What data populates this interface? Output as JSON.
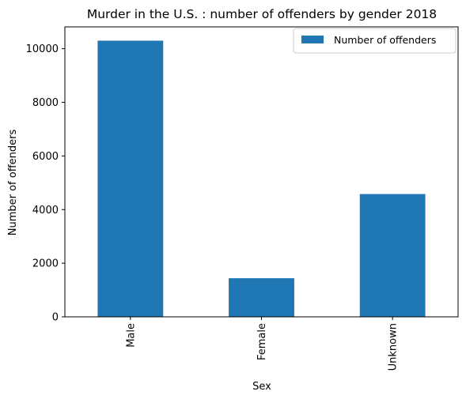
{
  "chart_data": {
    "type": "bar",
    "title": "Murder in the U.S. : number of offenders by gender 2018",
    "xlabel": "Sex",
    "ylabel": "Number of offenders",
    "categories": [
      "Male",
      "Female",
      "Unknown"
    ],
    "series": [
      {
        "name": "Number of offenders",
        "values": [
          10300,
          1440,
          4580
        ],
        "color": "#1f77b4"
      }
    ],
    "ylim": [
      0,
      10815
    ],
    "yticks": [
      0,
      2000,
      4000,
      6000,
      8000,
      10000
    ],
    "ytick_labels": [
      "0",
      "2000",
      "4000",
      "6000",
      "8000",
      "10000"
    ],
    "xtick_rotation": "vertical",
    "grid": false,
    "legend_position": "upper right"
  }
}
